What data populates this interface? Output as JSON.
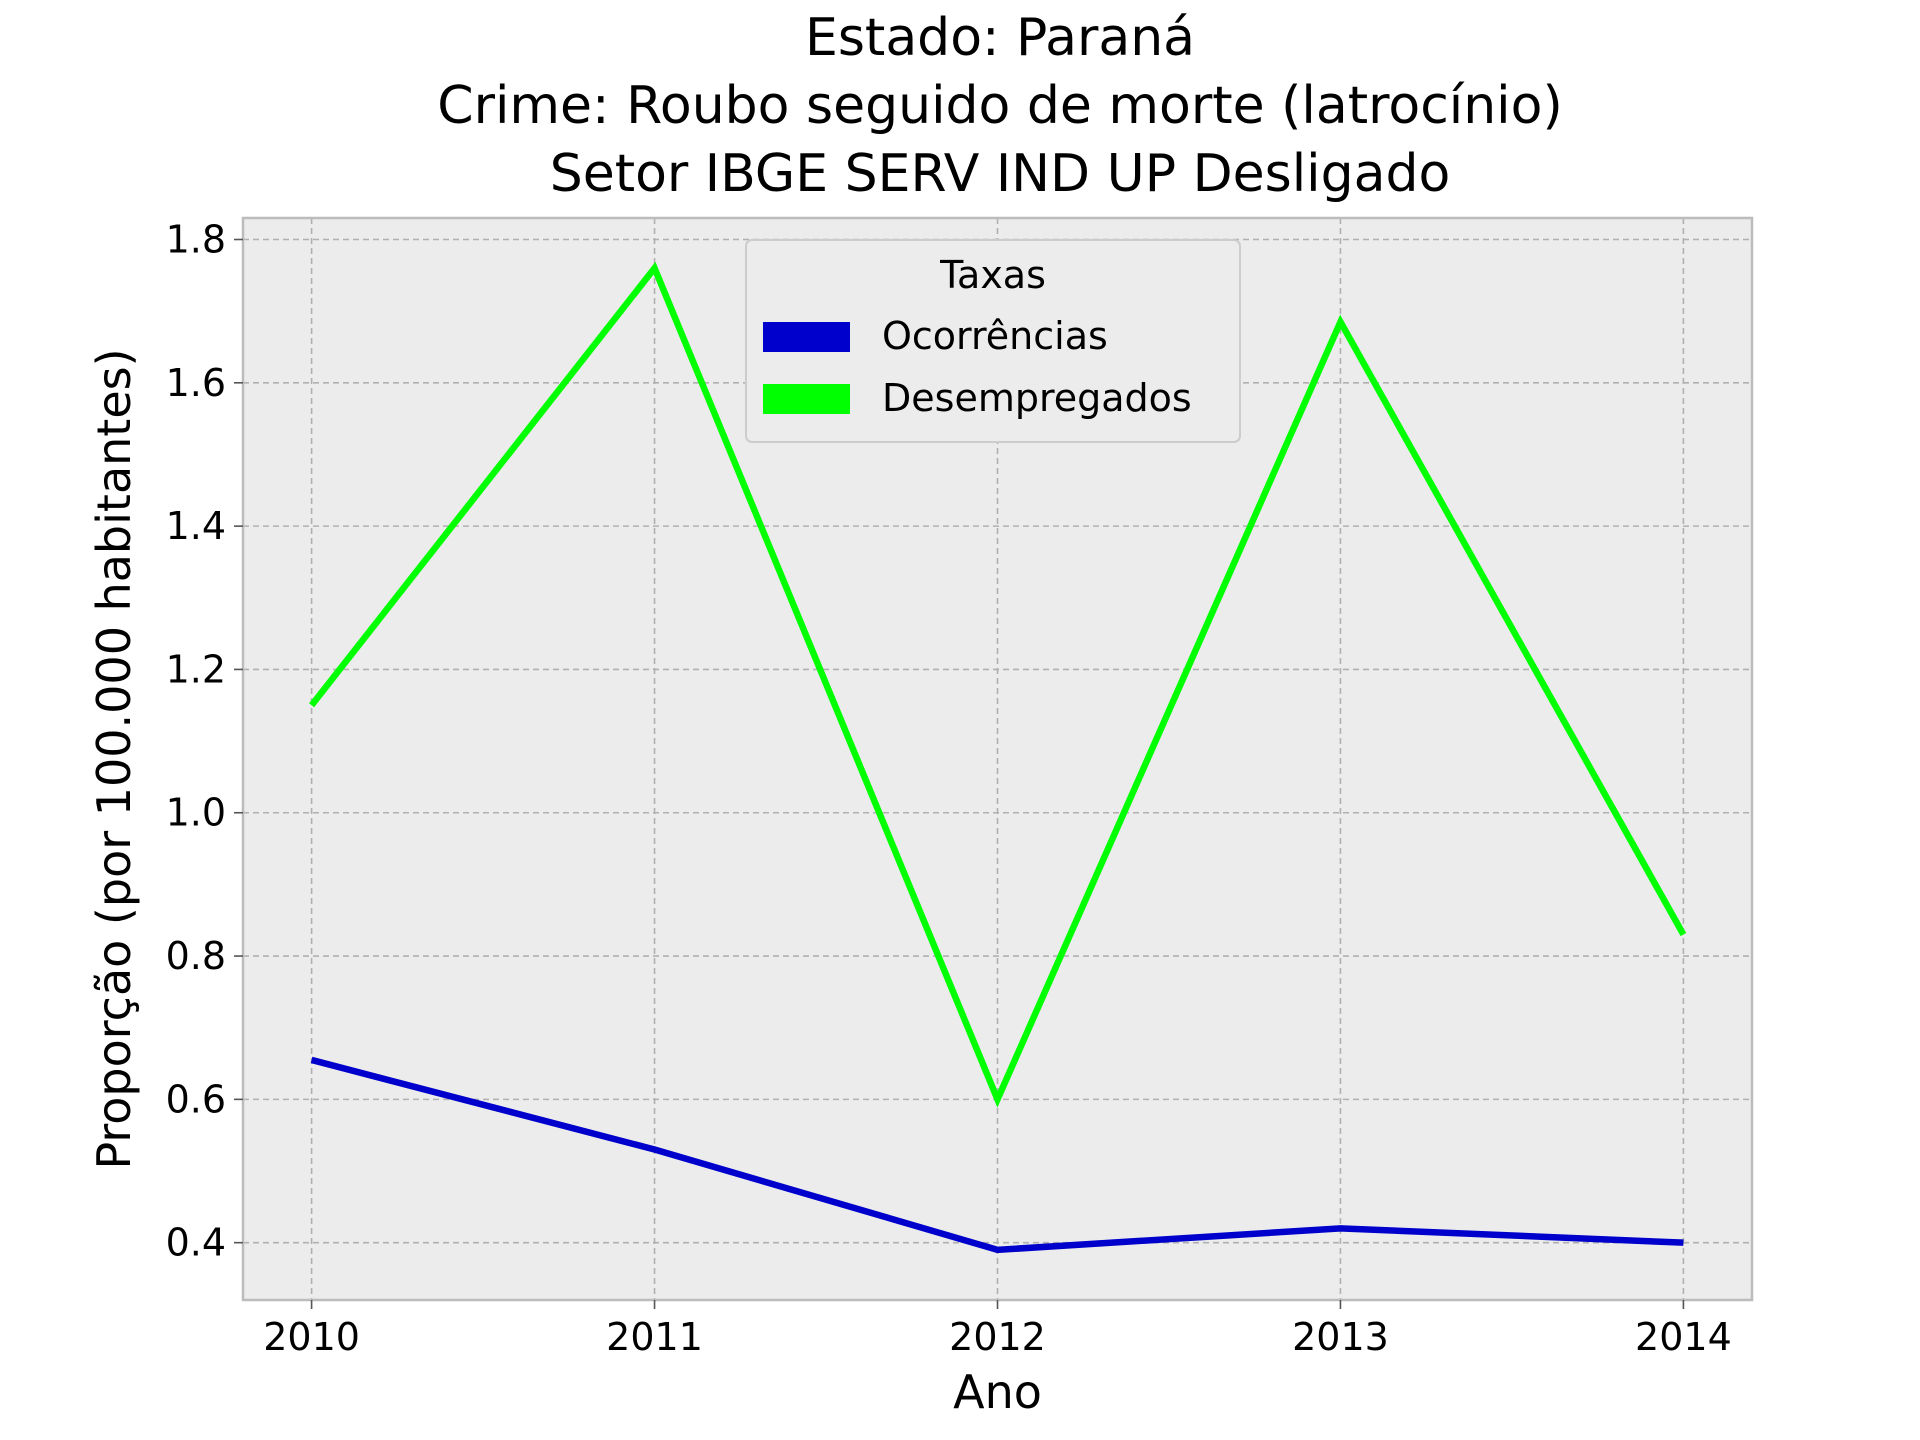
{
  "chart_data": {
    "type": "line",
    "title": [
      "Estado: Paraná",
      "Crime: Roubo seguido de morte (latrocínio)",
      "Setor IBGE  SERV IND UP   Desligado"
    ],
    "xlabel": "Ano",
    "ylabel": "Proporção (por 100.000 habitantes)",
    "x": [
      2010,
      2011,
      2012,
      2013,
      2014
    ],
    "x_ticks": [
      "2010",
      "2011",
      "2012",
      "2013",
      "2014"
    ],
    "y_ticks": [
      "0.4",
      "0.6",
      "0.8",
      "1.0",
      "1.2",
      "1.4",
      "1.6",
      "1.8"
    ],
    "xlim": [
      2009.8,
      2014.2
    ],
    "ylim": [
      0.32,
      1.83
    ],
    "grid": true,
    "legend": {
      "title": "Taxas",
      "placement": "top-center"
    },
    "series": [
      {
        "name": "Ocorrências",
        "color": "#0000cc",
        "values": [
          0.655,
          0.53,
          0.39,
          0.42,
          0.4
        ]
      },
      {
        "name": "Desempregados",
        "color": "#00ff00",
        "values": [
          1.15,
          1.76,
          0.6,
          1.685,
          0.83
        ]
      }
    ],
    "colors": {
      "plot_background": "#ececec",
      "grid": "#b0b0b0",
      "frame": "#bcbcbc"
    }
  }
}
